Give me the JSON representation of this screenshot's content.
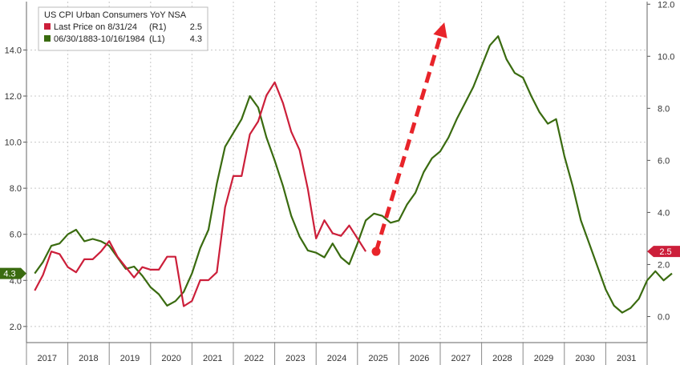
{
  "chart_data": {
    "type": "line",
    "title": "US CPI Urban Consumers YoY NSA",
    "x_categories": [
      "2017",
      "2018",
      "2019",
      "2020",
      "2021",
      "2022",
      "2023",
      "2024",
      "2025",
      "2026",
      "2027",
      "2028",
      "2029",
      "2030",
      "2031"
    ],
    "left_axis": {
      "ticks": [
        "2.0",
        "4.0",
        "6.0",
        "8.0",
        "10.0",
        "12.0",
        "14.0"
      ],
      "ylim": [
        1.3,
        16.1
      ]
    },
    "right_axis": {
      "ticks": [
        "0.0",
        "2.0",
        "4.0",
        "6.0",
        "8.0",
        "10.0",
        "12.0"
      ],
      "ylim": [
        -1.0,
        12.1
      ]
    },
    "grid": true,
    "legend_position": "top-left",
    "series": [
      {
        "name": "06/30/1883-10/16/1984",
        "legend_label": "06/30/1883-10/16/1984",
        "legend_tag": "(L1)",
        "legend_value": "4.3",
        "axis": "left",
        "color": "#3a6b10",
        "x": [
          2016.7,
          2016.9,
          2017.1,
          2017.3,
          2017.5,
          2017.7,
          2017.9,
          2018.1,
          2018.3,
          2018.5,
          2018.7,
          2018.9,
          2019.1,
          2019.3,
          2019.5,
          2019.7,
          2019.9,
          2020.1,
          2020.3,
          2020.5,
          2020.7,
          2020.9,
          2021.1,
          2021.3,
          2021.5,
          2021.7,
          2021.9,
          2022.1,
          2022.3,
          2022.5,
          2022.7,
          2022.9,
          2023.1,
          2023.3,
          2023.5,
          2023.7,
          2023.9,
          2024.1,
          2024.3,
          2024.5,
          2024.7,
          2024.9,
          2025.1,
          2025.3,
          2025.5,
          2025.7,
          2025.9,
          2026.1,
          2026.3,
          2026.5,
          2026.7,
          2026.9,
          2027.1,
          2027.3,
          2027.5,
          2027.7,
          2027.9,
          2028.1,
          2028.3,
          2028.5,
          2028.7,
          2028.9,
          2029.1,
          2029.3,
          2029.5,
          2029.7,
          2029.9,
          2030.1,
          2030.3,
          2030.5,
          2030.7,
          2030.9,
          2031.1,
          2031.3,
          2031.5,
          2031.7,
          2031.9,
          2032.1
        ],
        "values": [
          4.3,
          4.8,
          5.5,
          5.6,
          6.0,
          6.2,
          5.7,
          5.8,
          5.7,
          5.5,
          5.0,
          4.5,
          4.6,
          4.2,
          3.7,
          3.4,
          2.9,
          3.1,
          3.5,
          4.3,
          5.4,
          6.2,
          8.2,
          9.8,
          10.4,
          11.0,
          12.0,
          11.5,
          10.2,
          9.2,
          8.1,
          6.8,
          5.9,
          5.3,
          5.2,
          5.0,
          5.6,
          5.0,
          4.7,
          5.6,
          6.6,
          6.9,
          6.8,
          6.5,
          6.6,
          7.3,
          7.8,
          8.7,
          9.3,
          9.6,
          10.2,
          11.0,
          11.7,
          12.4,
          13.3,
          14.2,
          14.6,
          13.6,
          13.0,
          12.8,
          12.0,
          11.3,
          10.8,
          11.0,
          9.4,
          8.1,
          6.6,
          5.6,
          4.6,
          3.6,
          2.9,
          2.6,
          2.8,
          3.2,
          4.0,
          4.4,
          4.0,
          4.3
        ]
      },
      {
        "name": "Last Price on 8/31/24",
        "legend_label": "Last Price on 8/31/24",
        "legend_tag": "(R1)",
        "legend_value": "2.5",
        "axis": "right",
        "color": "#cc1f3a",
        "x": [
          2016.7,
          2016.9,
          2017.1,
          2017.3,
          2017.5,
          2017.7,
          2017.9,
          2018.1,
          2018.3,
          2018.5,
          2018.7,
          2018.9,
          2019.1,
          2019.3,
          2019.5,
          2019.7,
          2019.9,
          2020.1,
          2020.3,
          2020.5,
          2020.7,
          2020.9,
          2021.1,
          2021.3,
          2021.5,
          2021.7,
          2021.9,
          2022.1,
          2022.3,
          2022.5,
          2022.7,
          2022.9,
          2023.1,
          2023.3,
          2023.5,
          2023.7,
          2023.9,
          2024.1,
          2024.3,
          2024.5,
          2024.7
        ],
        "values": [
          1.0,
          1.6,
          2.5,
          2.4,
          1.9,
          1.7,
          2.2,
          2.2,
          2.5,
          2.9,
          2.3,
          1.9,
          1.5,
          1.9,
          1.8,
          1.8,
          2.3,
          2.3,
          0.4,
          0.6,
          1.4,
          1.4,
          1.7,
          4.2,
          5.4,
          5.4,
          7.0,
          7.5,
          8.5,
          9.0,
          8.2,
          7.1,
          6.4,
          4.9,
          3.0,
          3.7,
          3.2,
          3.1,
          3.5,
          3.0,
          2.5
        ]
      }
    ],
    "annotations": [
      {
        "type": "dashed-arrow",
        "color": "#e8242a",
        "from": [
          2024.95,
          2.5
        ],
        "to": [
          2026.6,
          11.3
        ],
        "axis": "right"
      }
    ],
    "axis_tags": [
      {
        "text": "4.3",
        "side": "left",
        "value": 4.3,
        "color": "#3a6b10"
      },
      {
        "text": "2.5",
        "side": "right",
        "value": 2.5,
        "color": "#cc1f3a"
      }
    ]
  }
}
